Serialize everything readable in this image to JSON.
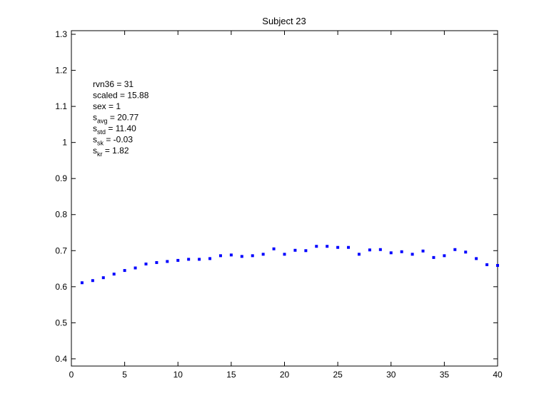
{
  "chart_data": {
    "type": "scatter",
    "title": "Subject 23",
    "xlabel": "",
    "ylabel": "",
    "xlim": [
      0,
      40
    ],
    "ylim": [
      0.38,
      1.31
    ],
    "xticks": [
      "0",
      "5",
      "10",
      "15",
      "20",
      "25",
      "30",
      "35",
      "40"
    ],
    "yticks": [
      "0.4",
      "0.5",
      "0.6",
      "0.7",
      "0.8",
      "0.9",
      "1",
      "1.1",
      "1.2",
      "1.3"
    ],
    "grid": false,
    "marker": "point",
    "series": [
      {
        "color": "#0000ff",
        "x": [
          1,
          2,
          3,
          4,
          5,
          6,
          7,
          8,
          9,
          10,
          11,
          12,
          13,
          14,
          15,
          16,
          17,
          18,
          19,
          20,
          21,
          22,
          23,
          24,
          25,
          26,
          27,
          28,
          29,
          30,
          31,
          32,
          33,
          34,
          35,
          36,
          37,
          38,
          39,
          40
        ],
        "y": [
          0.611,
          0.617,
          0.625,
          0.635,
          0.645,
          0.652,
          0.663,
          0.667,
          0.67,
          0.673,
          0.676,
          0.676,
          0.678,
          0.686,
          0.688,
          0.684,
          0.686,
          0.69,
          0.705,
          0.69,
          0.701,
          0.7,
          0.712,
          0.712,
          0.709,
          0.709,
          0.69,
          0.702,
          0.703,
          0.694,
          0.697,
          0.69,
          0.699,
          0.681,
          0.686,
          0.703,
          0.696,
          0.678,
          0.661,
          0.659
        ]
      }
    ],
    "annotations": [
      {
        "base": "rvn36 = 31",
        "sub": "",
        "tail": ""
      },
      {
        "base": "scaled = 15.88",
        "sub": "",
        "tail": ""
      },
      {
        "base": "sex   = 1",
        "sub": "",
        "tail": ""
      },
      {
        "base": "s",
        "sub": "avg",
        "tail": " = 20.77"
      },
      {
        "base": "s",
        "sub": "std",
        "tail": " = 11.40"
      },
      {
        "base": "s",
        "sub": "sk",
        "tail": " = -0.03"
      },
      {
        "base": "s",
        "sub": "kr",
        "tail": " = 1.82"
      }
    ]
  }
}
